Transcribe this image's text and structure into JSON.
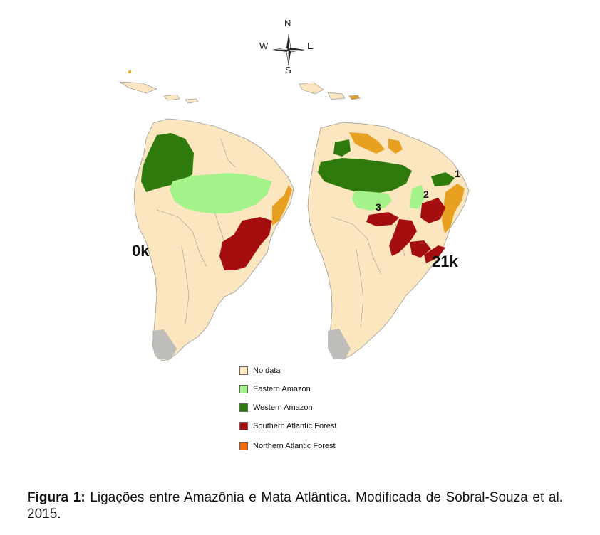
{
  "compass": {
    "north": "N",
    "south": "S",
    "east": "E",
    "west": "W"
  },
  "maps": [
    {
      "label": "0k"
    },
    {
      "label": "21k",
      "markers": [
        "1",
        "2",
        "3"
      ]
    }
  ],
  "legend": [
    {
      "label": "No data",
      "color": "#fbe6c0"
    },
    {
      "label": "Eastern Amazon",
      "color": "#a3f28a"
    },
    {
      "label": "Western Amazon",
      "color": "#2f7a0c"
    },
    {
      "label": "Southern Atlantic Forest",
      "color": "#a50e0e"
    },
    {
      "label": "Northern Atlantic Forest",
      "color": "#f0680c"
    }
  ],
  "colors": {
    "land": "#fbe6c0",
    "borders": "#9a9a9a",
    "orange_patch": "#e8a020",
    "andes_gray": "#b8b8b8"
  },
  "caption": {
    "prefix": "Figura 1:",
    "text": " Ligações entre Amazônia e Mata Atlântica. Modificada de Sobral-Souza et al. 2015."
  }
}
